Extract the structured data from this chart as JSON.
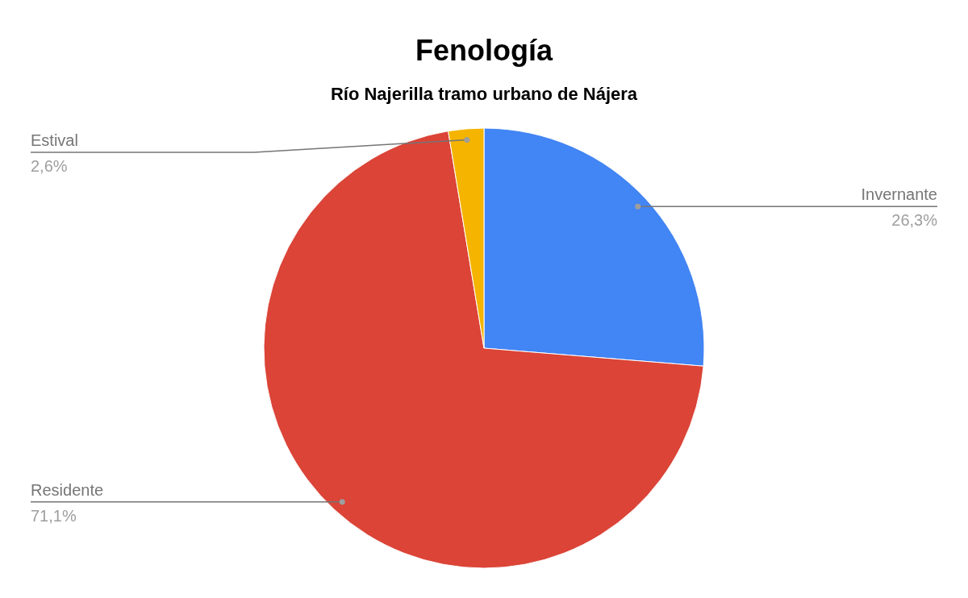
{
  "chart_data": {
    "type": "pie",
    "title": "Fenología",
    "subtitle": "Río Najerilla tramo urbano de Nájera",
    "categories": [
      "Invernante",
      "Residente",
      "Estival"
    ],
    "values": [
      26.3,
      71.1,
      2.6
    ],
    "value_labels": [
      "26,3%",
      "71,1%",
      "2,6%"
    ],
    "colors": [
      "#4285f4",
      "#db4437",
      "#f4b400"
    ]
  }
}
